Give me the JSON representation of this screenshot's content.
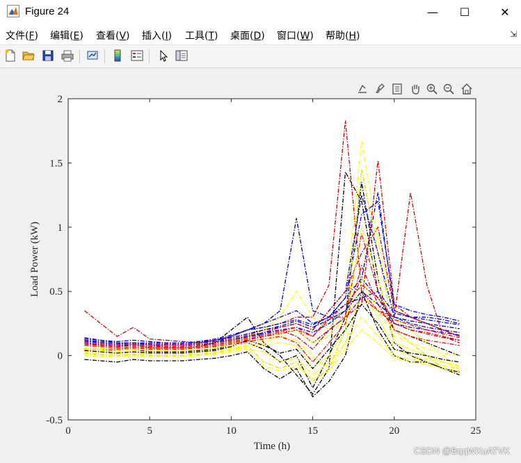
{
  "window": {
    "title": "Figure 24",
    "minimize_glyph": "—",
    "maximize_glyph": "☐",
    "close_glyph": "✕"
  },
  "menu": [
    {
      "pre": "文件(",
      "key": "F",
      "post": ")"
    },
    {
      "pre": "编辑(",
      "key": "E",
      "post": ")"
    },
    {
      "pre": "查看(",
      "key": "V",
      "post": ")"
    },
    {
      "pre": "插入(",
      "key": "I",
      "post": ")"
    },
    {
      "pre": "工具(",
      "key": "T",
      "post": ")"
    },
    {
      "pre": "桌面(",
      "key": "D",
      "post": ")"
    },
    {
      "pre": "窗口(",
      "key": "W",
      "post": ")"
    },
    {
      "pre": "帮助(",
      "key": "H",
      "post": ")"
    }
  ],
  "toolbar_icons": [
    "new-file-icon",
    "open-folder-icon",
    "save-icon",
    "print-icon",
    "link-plot-icon",
    "insert-colorbar-icon",
    "insert-legend-icon",
    "edit-plot-icon",
    "property-inspector-icon"
  ],
  "axes_toolbar_icons": [
    "export-icon",
    "brush-icon",
    "data-tips-icon",
    "pan-icon",
    "zoom-in-icon",
    "zoom-out-icon",
    "home-icon"
  ],
  "watermark": "CSDN @BqqWXuATVK",
  "chart_data": {
    "type": "line",
    "title": "",
    "xlabel": "Time (h)",
    "ylabel": "Load Power (kW)",
    "xlim": [
      0,
      25
    ],
    "ylim": [
      -0.5,
      2
    ],
    "xticks": [
      "0",
      "5",
      "10",
      "15",
      "20",
      "25"
    ],
    "yticks": [
      "-0.5",
      "0",
      "0.5",
      "1",
      "1.5",
      "2"
    ],
    "grid": false,
    "legend": "none",
    "line_style": "dash-dot",
    "x": [
      1,
      2,
      3,
      4,
      5,
      6,
      7,
      8,
      9,
      10,
      11,
      12,
      13,
      14,
      15,
      16,
      17,
      18,
      19,
      20,
      21,
      22,
      23,
      24
    ],
    "series_colors": [
      "#000000",
      "#0000ff",
      "#ff0000",
      "#ffff00",
      "#0000aa",
      "#cc0000",
      "#dddd00"
    ],
    "series": [
      {
        "color": "#cc0000",
        "values": [
          0.35,
          0.25,
          0.15,
          0.22,
          0.13,
          0.12,
          0.11,
          0.1,
          0.12,
          0.15,
          0.2,
          0.22,
          0.25,
          0.3,
          0.3,
          0.55,
          1.83,
          0.5,
          0.35,
          0.3,
          1.27,
          0.55,
          0.15,
          0.1
        ]
      },
      {
        "color": "#0000aa",
        "values": [
          0.12,
          0.1,
          0.09,
          0.1,
          0.08,
          0.08,
          0.08,
          0.09,
          0.1,
          0.15,
          0.2,
          0.25,
          0.35,
          1.07,
          0.35,
          0.3,
          0.45,
          0.6,
          1.27,
          0.35,
          0.3,
          0.3,
          0.28,
          0.25
        ]
      },
      {
        "color": "#000000",
        "values": [
          0.1,
          0.08,
          0.07,
          0.09,
          0.06,
          0.06,
          0.06,
          0.07,
          0.1,
          0.2,
          0.3,
          0.1,
          0.0,
          -0.15,
          -0.3,
          -0.1,
          1.43,
          1.2,
          0.5,
          0.2,
          0.15,
          0.1,
          0.05,
          0.0
        ]
      },
      {
        "color": "#ffff00",
        "values": [
          0.08,
          0.06,
          0.05,
          0.06,
          0.04,
          0.04,
          0.05,
          0.05,
          0.08,
          0.1,
          0.15,
          0.2,
          0.3,
          0.5,
          0.3,
          0.2,
          0.4,
          1.67,
          0.9,
          0.3,
          0.2,
          0.1,
          0.0,
          -0.1
        ]
      },
      {
        "color": "#cc0000",
        "values": [
          0.1,
          0.09,
          0.08,
          0.09,
          0.08,
          0.08,
          0.08,
          0.09,
          0.1,
          0.12,
          0.15,
          0.18,
          0.2,
          0.15,
          0.05,
          0.2,
          0.3,
          0.4,
          1.52,
          0.4,
          0.3,
          0.25,
          0.2,
          0.15
        ]
      },
      {
        "color": "#0000ff",
        "values": [
          0.14,
          0.12,
          0.1,
          0.1,
          0.09,
          0.09,
          0.09,
          0.1,
          0.12,
          0.15,
          0.2,
          0.25,
          0.3,
          0.35,
          0.25,
          0.3,
          0.45,
          1.1,
          1.2,
          0.4,
          0.35,
          0.32,
          0.3,
          0.27
        ]
      },
      {
        "color": "#000000",
        "values": [
          0.05,
          0.04,
          0.04,
          0.05,
          0.03,
          0.03,
          0.03,
          0.04,
          0.05,
          0.08,
          0.1,
          0.05,
          -0.05,
          0.0,
          -0.25,
          0.0,
          0.3,
          1.35,
          0.6,
          0.1,
          0.0,
          -0.05,
          -0.1,
          -0.15
        ]
      },
      {
        "color": "#dddd00",
        "values": [
          0.02,
          0.01,
          0.0,
          0.01,
          0.0,
          0.0,
          0.0,
          0.01,
          0.02,
          0.05,
          0.08,
          -0.05,
          -0.1,
          -0.05,
          -0.2,
          -0.1,
          0.2,
          1.45,
          0.8,
          0.2,
          0.1,
          0.0,
          -0.1,
          -0.12
        ]
      },
      {
        "color": "#ff0000",
        "values": [
          0.08,
          0.07,
          0.06,
          0.07,
          0.06,
          0.06,
          0.06,
          0.07,
          0.08,
          0.1,
          0.12,
          0.15,
          0.18,
          0.2,
          0.15,
          0.3,
          0.3,
          0.95,
          0.5,
          0.25,
          0.2,
          0.18,
          0.15,
          0.12
        ]
      },
      {
        "color": "#0000ff",
        "values": [
          0.1,
          0.09,
          0.08,
          0.09,
          0.08,
          0.07,
          0.07,
          0.08,
          0.1,
          0.12,
          0.15,
          0.18,
          0.22,
          0.25,
          0.2,
          0.35,
          0.5,
          1.25,
          0.8,
          0.3,
          0.25,
          0.22,
          0.2,
          0.18
        ]
      },
      {
        "color": "#ffff00",
        "values": [
          0.05,
          0.04,
          0.03,
          0.04,
          0.02,
          0.02,
          0.02,
          0.03,
          0.04,
          0.06,
          0.08,
          0.1,
          0.15,
          0.12,
          0.0,
          -0.1,
          0.1,
          0.5,
          0.3,
          0.05,
          0.0,
          -0.03,
          -0.05,
          -0.08
        ]
      },
      {
        "color": "#cc0000",
        "values": [
          0.12,
          0.1,
          0.09,
          0.1,
          0.09,
          0.09,
          0.09,
          0.1,
          0.11,
          0.13,
          0.16,
          0.2,
          0.22,
          0.25,
          0.2,
          0.35,
          0.5,
          0.8,
          1.0,
          0.35,
          0.3,
          0.25,
          0.2,
          0.15
        ]
      },
      {
        "color": "#000000",
        "values": [
          -0.03,
          -0.04,
          -0.05,
          -0.03,
          -0.04,
          -0.04,
          -0.04,
          -0.03,
          -0.02,
          0.0,
          0.03,
          -0.1,
          -0.18,
          -0.1,
          -0.32,
          -0.2,
          0.0,
          0.5,
          0.2,
          0.0,
          -0.05,
          -0.05,
          -0.1,
          -0.13
        ]
      },
      {
        "color": "#ffff00",
        "values": [
          0.03,
          0.02,
          0.01,
          0.02,
          0.01,
          0.01,
          0.01,
          0.02,
          0.03,
          0.05,
          0.07,
          0.08,
          0.1,
          0.08,
          -0.1,
          0.0,
          0.2,
          1.0,
          0.6,
          0.1,
          0.05,
          0.0,
          -0.05,
          -0.1
        ]
      },
      {
        "color": "#0000ff",
        "values": [
          0.11,
          0.1,
          0.09,
          0.1,
          0.09,
          0.09,
          0.09,
          0.1,
          0.11,
          0.12,
          0.15,
          0.17,
          0.2,
          0.22,
          0.18,
          0.25,
          0.35,
          0.6,
          0.45,
          0.25,
          0.22,
          0.2,
          0.18,
          0.16
        ]
      },
      {
        "color": "#ff0000",
        "values": [
          0.06,
          0.05,
          0.05,
          0.06,
          0.05,
          0.05,
          0.05,
          0.06,
          0.07,
          0.09,
          0.11,
          0.13,
          0.15,
          0.1,
          -0.05,
          0.1,
          0.25,
          0.7,
          0.4,
          0.2,
          0.15,
          0.12,
          0.1,
          0.08
        ]
      },
      {
        "color": "#ffff00",
        "values": [
          0.0,
          -0.01,
          -0.01,
          0.0,
          -0.01,
          -0.01,
          -0.01,
          0.0,
          0.01,
          0.03,
          0.05,
          0.03,
          -0.05,
          -0.02,
          -0.15,
          -0.05,
          0.1,
          0.3,
          0.15,
          0.0,
          -0.03,
          -0.05,
          -0.08,
          -0.1
        ]
      },
      {
        "color": "#cc0000",
        "values": [
          0.09,
          0.08,
          0.07,
          0.08,
          0.07,
          0.07,
          0.07,
          0.08,
          0.09,
          0.11,
          0.13,
          0.15,
          0.17,
          0.2,
          0.1,
          0.2,
          0.3,
          0.45,
          0.35,
          0.25,
          0.2,
          0.17,
          0.14,
          0.12
        ]
      },
      {
        "color": "#0000aa",
        "values": [
          0.13,
          0.12,
          0.11,
          0.12,
          0.11,
          0.1,
          0.1,
          0.11,
          0.12,
          0.14,
          0.17,
          0.2,
          0.23,
          0.27,
          0.22,
          0.28,
          0.35,
          0.5,
          0.4,
          0.3,
          0.27,
          0.25,
          0.23,
          0.21
        ]
      },
      {
        "color": "#000000",
        "values": [
          0.04,
          0.03,
          0.02,
          0.03,
          0.02,
          0.02,
          0.02,
          0.03,
          0.04,
          0.07,
          0.12,
          0.08,
          0.02,
          0.05,
          -0.1,
          0.05,
          0.2,
          0.4,
          0.25,
          0.05,
          0.02,
          0.0,
          -0.03,
          -0.05
        ]
      },
      {
        "color": "#ffff00",
        "values": [
          0.06,
          0.05,
          0.04,
          0.05,
          0.04,
          0.04,
          0.04,
          0.05,
          0.06,
          0.08,
          0.1,
          0.12,
          0.18,
          0.2,
          0.1,
          0.15,
          0.3,
          0.6,
          0.35,
          0.15,
          0.1,
          0.05,
          0.02,
          0.0
        ]
      },
      {
        "color": "#ff0000",
        "values": [
          0.1,
          0.09,
          0.08,
          0.09,
          0.08,
          0.08,
          0.08,
          0.09,
          0.1,
          0.12,
          0.14,
          0.16,
          0.19,
          0.22,
          0.15,
          0.28,
          0.4,
          0.55,
          0.45,
          0.28,
          0.24,
          0.2,
          0.17,
          0.14
        ]
      },
      {
        "color": "#ffff00",
        "values": [
          0.01,
          0.0,
          -0.01,
          0.0,
          -0.01,
          -0.01,
          -0.01,
          0.0,
          0.01,
          0.04,
          0.06,
          -0.08,
          -0.12,
          -0.08,
          -0.18,
          -0.12,
          0.05,
          0.2,
          0.1,
          -0.02,
          -0.05,
          -0.07,
          -0.1,
          -0.14
        ]
      },
      {
        "color": "#0000ff",
        "values": [
          0.12,
          0.11,
          0.1,
          0.1,
          0.1,
          0.1,
          0.1,
          0.11,
          0.13,
          0.16,
          0.2,
          0.22,
          0.25,
          0.28,
          0.24,
          0.3,
          0.4,
          0.45,
          0.5,
          0.33,
          0.3,
          0.28,
          0.26,
          0.24
        ]
      }
    ]
  }
}
